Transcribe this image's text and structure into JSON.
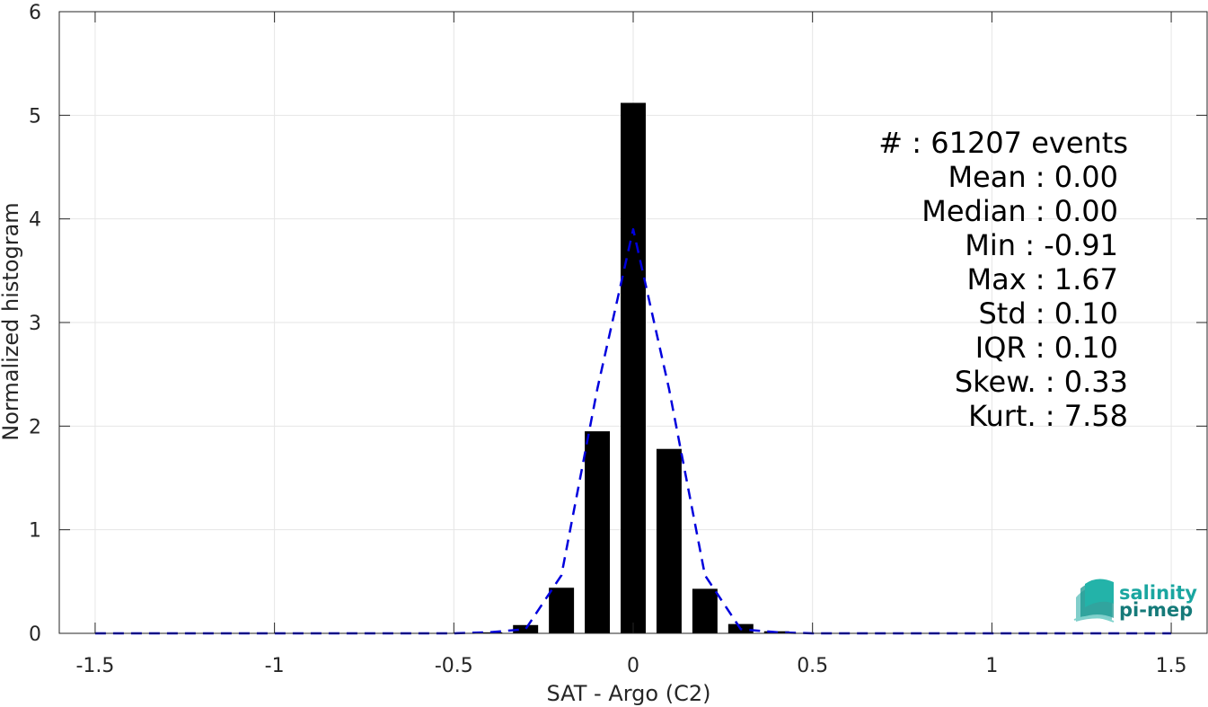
{
  "chart_data": {
    "type": "bar",
    "xlabel": "SAT - Argo (C2)",
    "ylabel": "Normalized histogram",
    "xlim": [
      -1.6,
      1.6
    ],
    "ylim": [
      0,
      6
    ],
    "x_ticks": [
      -1.5,
      -1,
      -0.5,
      0,
      0.5,
      1,
      1.5
    ],
    "x_tick_labels": [
      "-1.5",
      "-1",
      "-0.5",
      "0",
      "0.5",
      "1",
      "1.5"
    ],
    "y_ticks": [
      0,
      1,
      2,
      3,
      4,
      5,
      6
    ],
    "y_tick_labels": [
      "0",
      "1",
      "2",
      "3",
      "4",
      "5",
      "6"
    ],
    "grid": true,
    "bin_width": 0.1,
    "bars": {
      "name": "histogram",
      "color": "#000000",
      "x": [
        -0.4,
        -0.3,
        -0.2,
        -0.1,
        0.0,
        0.1,
        0.2,
        0.3,
        0.4
      ],
      "values": [
        0.01,
        0.08,
        0.44,
        1.95,
        5.12,
        1.78,
        0.43,
        0.09,
        0.02
      ]
    },
    "fit": {
      "name": "normal-fit",
      "color": "#0000dd",
      "style": "dashed",
      "x": [
        -1.5,
        -1.4,
        -1.3,
        -1.2,
        -1.1,
        -1.0,
        -0.9,
        -0.8,
        -0.7,
        -0.6,
        -0.5,
        -0.4,
        -0.3,
        -0.2,
        -0.1,
        0.0,
        0.1,
        0.2,
        0.3,
        0.4,
        0.5,
        0.6,
        0.7,
        0.8,
        0.9,
        1.0,
        1.1,
        1.2,
        1.3,
        1.4,
        1.5
      ],
      "y": [
        0,
        0,
        0,
        0,
        0,
        0,
        0,
        0,
        0,
        0,
        0,
        0.01,
        0.04,
        0.56,
        2.36,
        3.9,
        2.36,
        0.56,
        0.04,
        0.01,
        0,
        0,
        0,
        0,
        0,
        0,
        0,
        0,
        0,
        0,
        0
      ]
    },
    "stats": [
      "#  : 61207 events",
      "Mean : 0.00",
      "Median : 0.00",
      "Min : -0.91",
      "Max : 1.67",
      "Std : 0.10",
      "IQR : 0.10",
      "Skew. : 0.33",
      "Kurt. : 7.58"
    ]
  },
  "logo": {
    "line1": "salinity",
    "line2": "pi-mep",
    "color": "#1aa6a0"
  }
}
